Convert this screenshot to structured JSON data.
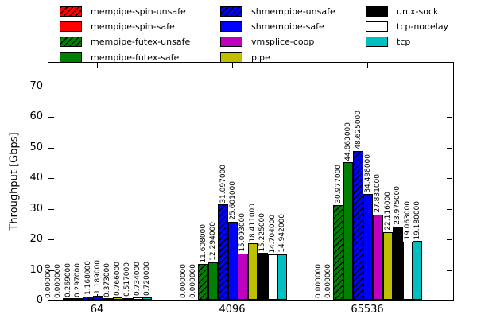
{
  "chart_data": {
    "type": "bar",
    "title": "",
    "xlabel": "",
    "ylabel": "Throughput [Gbps]",
    "categories": [
      "64",
      "4096",
      "65536"
    ],
    "ylim": [
      0,
      78
    ],
    "yticks": [
      0,
      10,
      20,
      30,
      40,
      50,
      60,
      70
    ],
    "grid": false,
    "legend_position": "top, 3 columns",
    "value_label_format": "6 decimals, rotated 90",
    "series": [
      {
        "name": "mempipe-spin-unsafe",
        "color": "#ff0000",
        "hatched": true,
        "values": [
          0.0,
          0.0,
          0.0
        ],
        "labels": [
          "0.000000",
          "0.000000",
          "0.000000"
        ]
      },
      {
        "name": "mempipe-spin-safe",
        "color": "#ff0000",
        "hatched": false,
        "values": [
          0.0,
          0.0,
          0.0
        ],
        "labels": [
          "0.000000",
          "0.000000",
          "0.000000"
        ]
      },
      {
        "name": "mempipe-futex-unsafe",
        "color": "#008000",
        "hatched": true,
        "values": [
          0.269,
          11.608,
          30.977
        ],
        "labels": [
          "0.269000",
          "11.608000",
          "30.977000"
        ]
      },
      {
        "name": "mempipe-futex-safe",
        "color": "#008000",
        "hatched": false,
        "values": [
          0.297,
          12.294,
          44.863
        ],
        "labels": [
          "0.297000",
          "12.294000",
          "44.863000"
        ]
      },
      {
        "name": "shmempipe-unsafe",
        "color": "#0000ff",
        "hatched": true,
        "values": [
          1.168,
          31.097,
          48.625
        ],
        "labels": [
          "1.168000",
          "31.097000",
          "48.625000"
        ]
      },
      {
        "name": "shmempipe-safe",
        "color": "#0000ff",
        "hatched": false,
        "values": [
          1.189,
          25.601,
          34.498
        ],
        "labels": [
          "1.189000",
          "25.601000",
          "34.498000"
        ]
      },
      {
        "name": "vmsplice-coop",
        "color": "#bf00bf",
        "hatched": false,
        "values": [
          0.373,
          15.093,
          27.831
        ],
        "labels": [
          "0.373000",
          "15.093000",
          "27.831000"
        ]
      },
      {
        "name": "pipe",
        "color": "#bfbf00",
        "hatched": false,
        "values": [
          0.766,
          18.411,
          22.116
        ],
        "labels": [
          "0.766000",
          "18.411000",
          "22.116000"
        ]
      },
      {
        "name": "unix-sock",
        "color": "#000000",
        "hatched": false,
        "values": [
          0.517,
          15.225,
          23.975
        ],
        "labels": [
          "0.517000",
          "15.225000",
          "23.975000"
        ]
      },
      {
        "name": "tcp-nodelay",
        "color": "#ffffff",
        "hatched": false,
        "values": [
          0.734,
          14.704,
          19.063
        ],
        "labels": [
          "0.734000",
          "14.704000",
          "19.063000"
        ]
      },
      {
        "name": "tcp",
        "color": "#00bfbf",
        "hatched": false,
        "values": [
          0.72,
          14.942,
          19.18
        ],
        "labels": [
          "0.720000",
          "14.942000",
          "19.180000"
        ]
      }
    ]
  }
}
